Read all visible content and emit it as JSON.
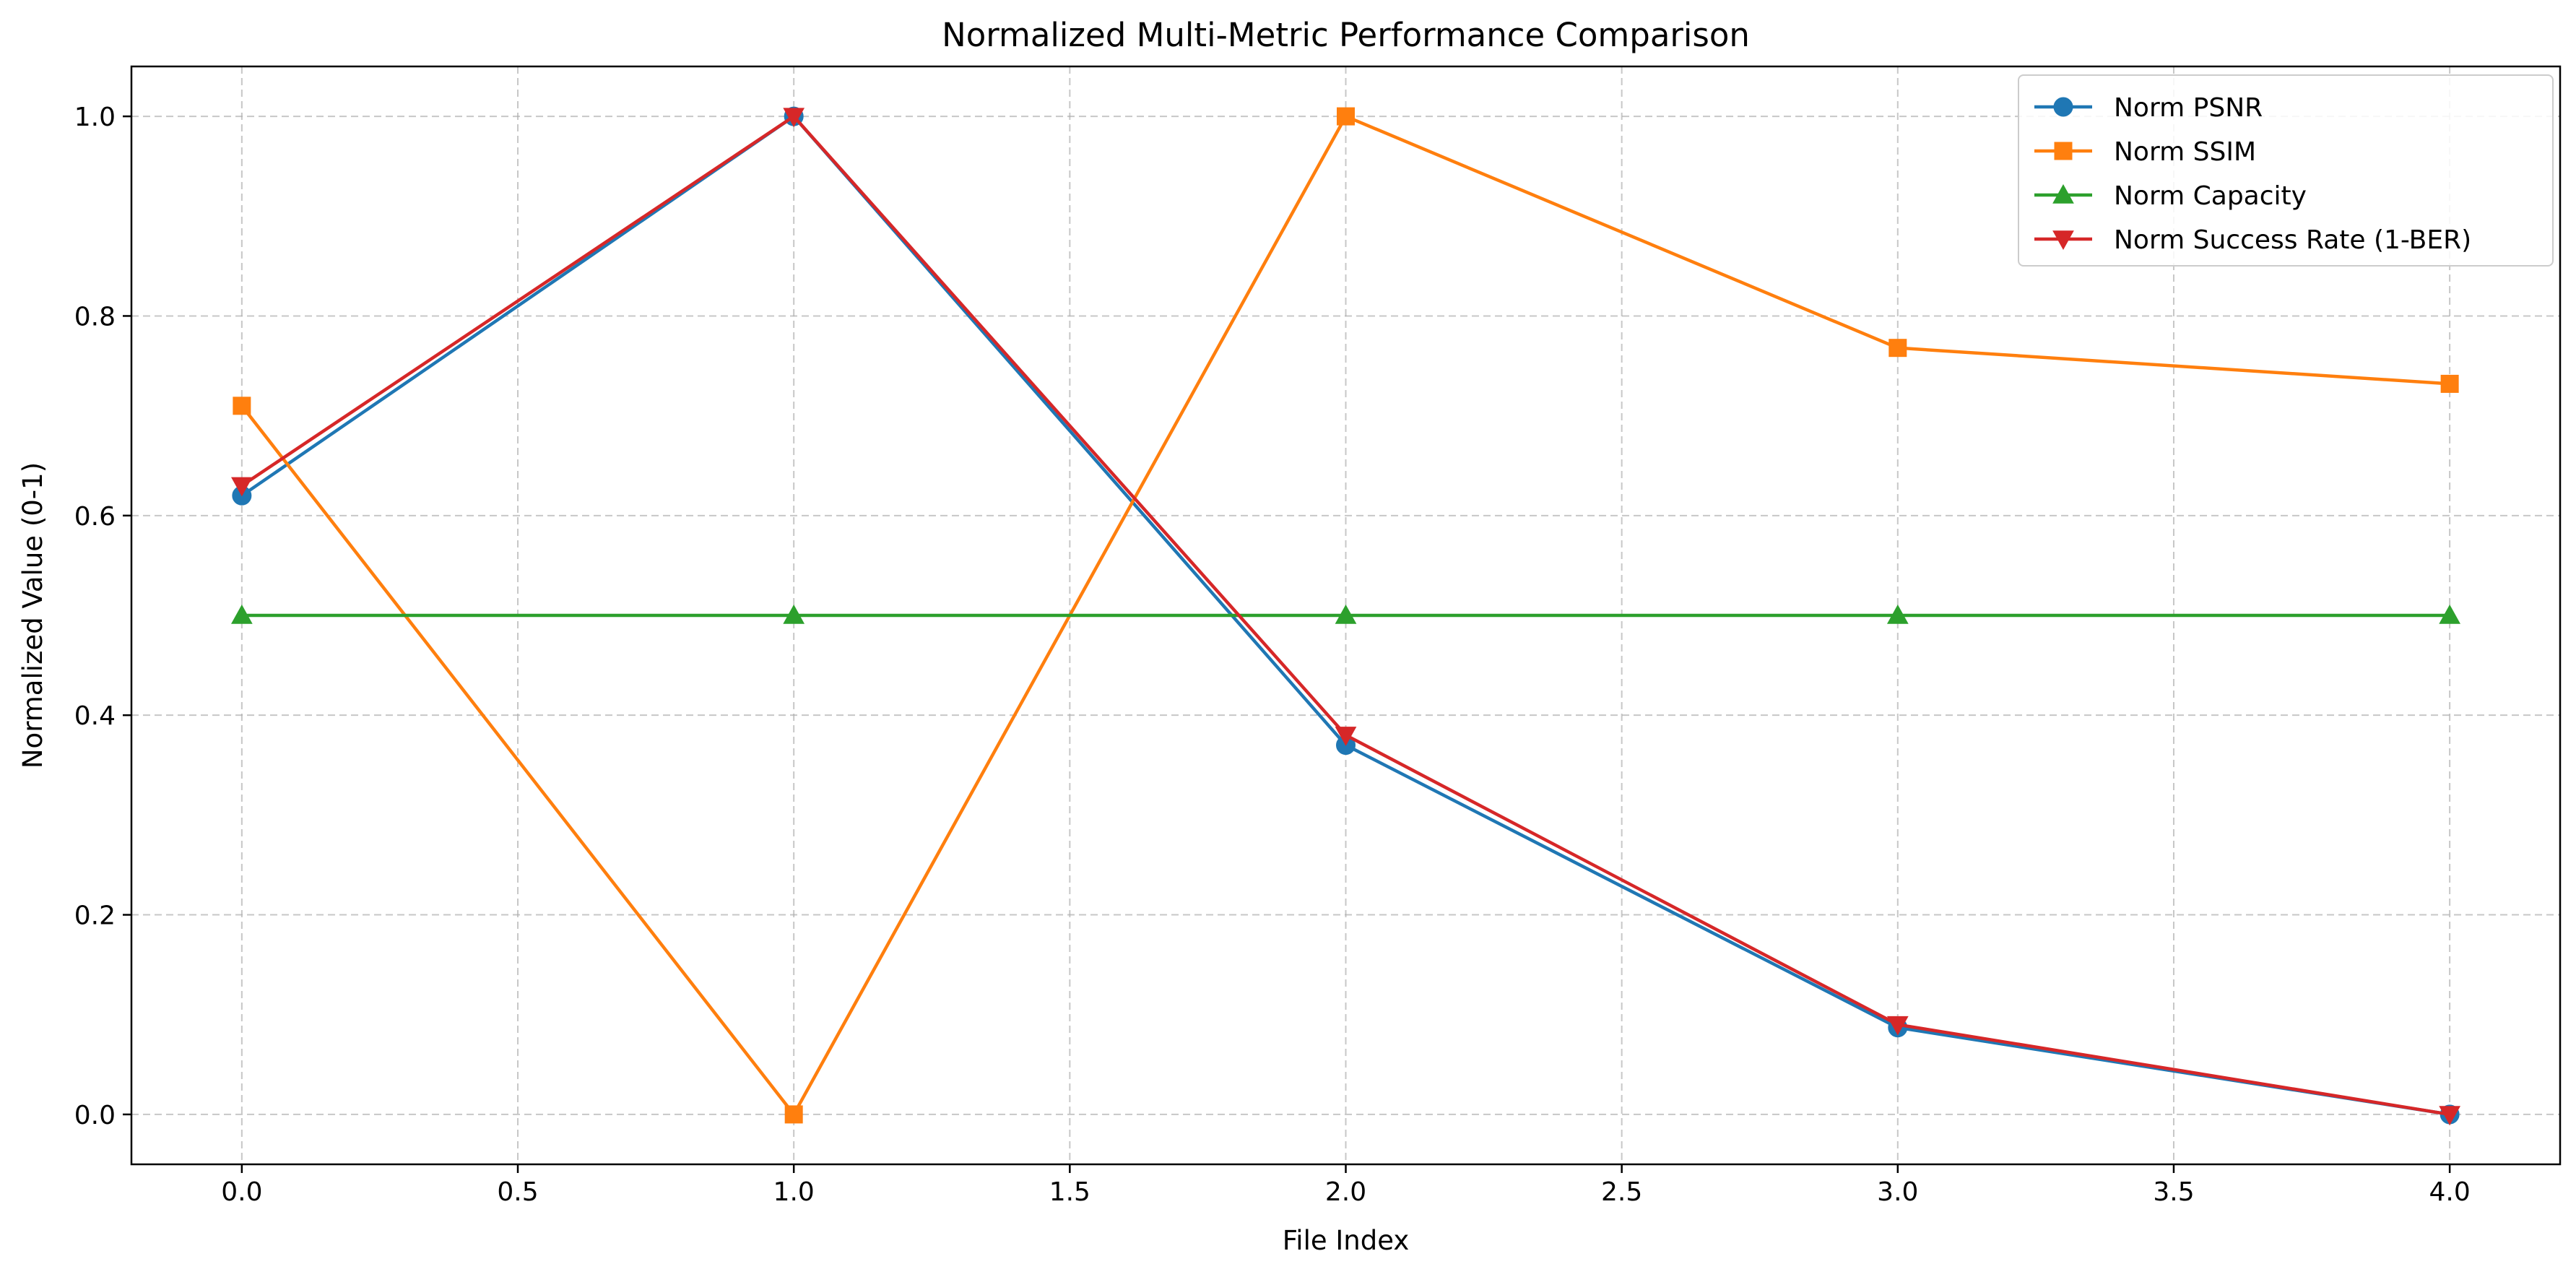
{
  "chart_data": {
    "type": "line",
    "title": "Normalized Multi-Metric Performance Comparison",
    "xlabel": "File Index",
    "ylabel": "Normalized Value (0-1)",
    "xlim": [
      -0.2,
      4.2
    ],
    "ylim": [
      -0.05,
      1.05
    ],
    "x_ticks": [
      0.0,
      0.5,
      1.0,
      1.5,
      2.0,
      2.5,
      3.0,
      3.5,
      4.0
    ],
    "x_tick_labels": [
      "0.0",
      "0.5",
      "1.0",
      "1.5",
      "2.0",
      "2.5",
      "3.0",
      "3.5",
      "4.0"
    ],
    "y_ticks": [
      0.0,
      0.2,
      0.4,
      0.6,
      0.8,
      1.0
    ],
    "y_tick_labels": [
      "0.0",
      "0.2",
      "0.4",
      "0.6",
      "0.8",
      "1.0"
    ],
    "grid": true,
    "legend_position": "top-right",
    "x": [
      0,
      1,
      2,
      3,
      4
    ],
    "series": [
      {
        "name": "Norm PSNR",
        "values": [
          0.62,
          1.0,
          0.37,
          0.087,
          0.0
        ],
        "color": "#1f77b4",
        "marker": "circle"
      },
      {
        "name": "Norm SSIM",
        "values": [
          0.71,
          0.0,
          1.0,
          0.768,
          0.732
        ],
        "color": "#ff7f0e",
        "marker": "square"
      },
      {
        "name": "Norm Capacity",
        "values": [
          0.5,
          0.5,
          0.5,
          0.5,
          0.5
        ],
        "color": "#2ca02c",
        "marker": "triangle-up"
      },
      {
        "name": "Norm Success Rate (1-BER)",
        "values": [
          0.63,
          1.0,
          0.38,
          0.09,
          0.0
        ],
        "color": "#d62728",
        "marker": "triangle-down"
      }
    ]
  }
}
